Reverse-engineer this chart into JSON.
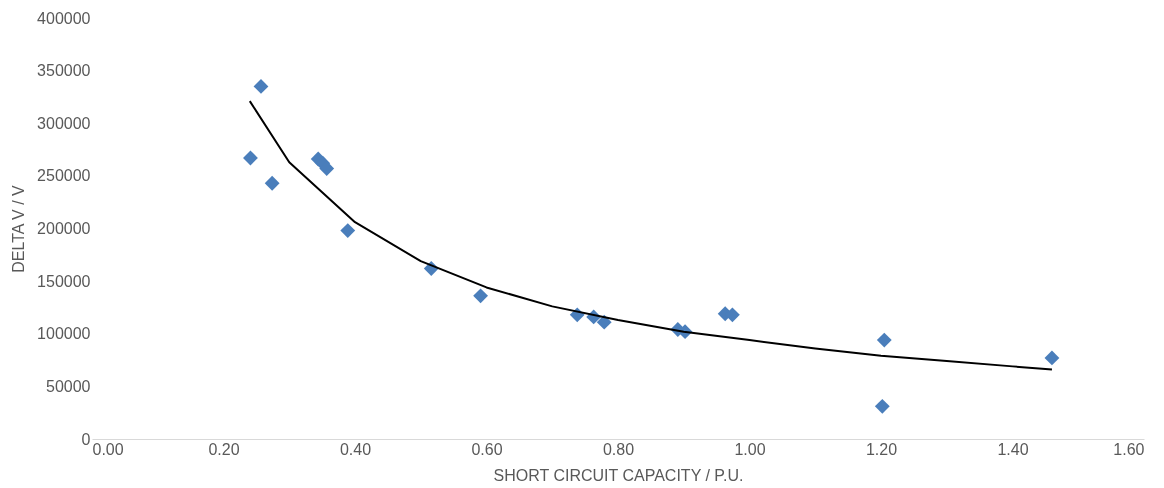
{
  "chart_data": {
    "type": "scatter",
    "xlabel": "SHORT CIRCUIT CAPACITY / P.U.",
    "ylabel": "DELTA V / V",
    "xlim": [
      0,
      1.6
    ],
    "xticks": [
      {
        "value": 0,
        "label": "0.00"
      },
      {
        "value": 0.2,
        "label": "0.20"
      },
      {
        "value": 0.4,
        "label": "0.40"
      },
      {
        "value": 0.6,
        "label": "0.60"
      },
      {
        "value": 0.8,
        "label": "0.80"
      },
      {
        "value": 1.0,
        "label": "1.00"
      },
      {
        "value": 1.2,
        "label": "1.20"
      },
      {
        "value": 1.4,
        "label": "1.40"
      },
      {
        "value": 1.6,
        "label": "1.60"
      }
    ],
    "ylim": [
      0,
      400000
    ],
    "yticks": [
      0,
      50000,
      100000,
      150000,
      200000,
      250000,
      300000,
      350000,
      400000
    ],
    "grid": false,
    "marker": "diamond",
    "series": [
      {
        "color": "#4a7ebb",
        "x": [
          0.241,
          0.257,
          0.274,
          0.344,
          0.351,
          0.357,
          0.389,
          0.516,
          0.591,
          0.738,
          0.763,
          0.779,
          0.891,
          0.902,
          0.963,
          0.974,
          1.205,
          1.202,
          1.46
        ],
        "values": [
          267000,
          335000,
          243000,
          266000,
          262000,
          257000,
          198000,
          162000,
          136000,
          118000,
          116000,
          111000,
          104000,
          102000,
          119000,
          118000,
          94000,
          31000,
          77000
        ]
      },
      {
        "type": "line",
        "color": "#000000",
        "line_style": "solid",
        "marker": "none",
        "x": [
          0.24,
          0.3,
          0.4,
          0.5,
          0.6,
          0.7,
          0.8,
          0.9,
          1.0,
          1.1,
          1.2,
          1.3,
          1.4,
          1.46
        ],
        "values": [
          321000,
          263000,
          206000,
          169000,
          144000,
          126000,
          113000,
          102000,
          94000,
          86000,
          79000,
          74000,
          69000,
          66000
        ]
      }
    ]
  }
}
